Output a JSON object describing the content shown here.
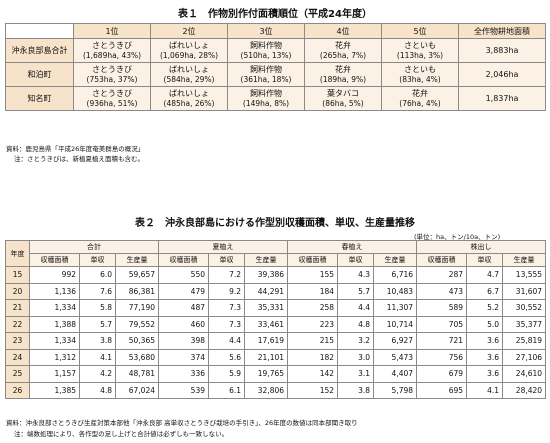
{
  "table1": {
    "title": "表１　作物別作付面積順位（平成24年度）",
    "col_headers": [
      "1位",
      "2位",
      "3位",
      "4位",
      "5位",
      "全作物耕地面積"
    ],
    "rows": [
      {
        "name": "沖永良部島合計",
        "cells": [
          {
            "crop": "さとうきび",
            "detail": "(1,689ha, 43%)"
          },
          {
            "crop": "ばれいしょ",
            "detail": "(1,069ha, 28%)"
          },
          {
            "crop": "飼料作物",
            "detail": "(510ha, 13%)"
          },
          {
            "crop": "花弁",
            "detail": "(265ha, 7%)"
          },
          {
            "crop": "さといも",
            "detail": "(113ha, 3%)"
          }
        ],
        "total": "3,883ha"
      },
      {
        "name": "和泊町",
        "cells": [
          {
            "crop": "さとうきび",
            "detail": "(753ha, 37%)"
          },
          {
            "crop": "ばれいしょ",
            "detail": "(584ha, 29%)"
          },
          {
            "crop": "飼料作物",
            "detail": "(361ha, 18%)"
          },
          {
            "crop": "花弁",
            "detail": "(189ha, 9%)"
          },
          {
            "crop": "さといも",
            "detail": "(83ha, 4%)"
          }
        ],
        "total": "2,046ha"
      },
      {
        "name": "知名町",
        "cells": [
          {
            "crop": "さとうきび",
            "detail": "(936ha, 51%)"
          },
          {
            "crop": "ばれいしょ",
            "detail": "(485ha, 26%)"
          },
          {
            "crop": "飼料作物",
            "detail": "(149ha, 8%)"
          },
          {
            "crop": "葉タバコ",
            "detail": "(86ha, 5%)"
          },
          {
            "crop": "花弁",
            "detail": "(76ha, 4%)"
          }
        ],
        "total": "1,837ha"
      }
    ],
    "notes": [
      "資料：鹿児島県「平成26年度奄美群島の概況」",
      "注：さとうきびは、新植夏植え面積も含む。"
    ]
  },
  "table2": {
    "title": "表２　沖永良部島における作型別収穫面積、単収、生産量推移",
    "unit": "(単位：ha、トン/10a、トン)",
    "year_header": "年度",
    "groups": [
      "合計",
      "夏植え",
      "春植え",
      "株出し"
    ],
    "subheaders": [
      "収穫面積",
      "単収",
      "生産量"
    ],
    "rows": [
      [
        "15",
        "992",
        "6.0",
        "59,657",
        "550",
        "7.2",
        "39,386",
        "155",
        "4.3",
        "6,716",
        "287",
        "4.7",
        "13,555"
      ],
      [
        "20",
        "1,136",
        "7.6",
        "86,381",
        "479",
        "9.2",
        "44,291",
        "184",
        "5.7",
        "10,483",
        "473",
        "6.7",
        "31,607"
      ],
      [
        "21",
        "1,334",
        "5.8",
        "77,190",
        "487",
        "7.3",
        "35,331",
        "258",
        "4.4",
        "11,307",
        "589",
        "5.2",
        "30,552"
      ],
      [
        "22",
        "1,388",
        "5.7",
        "79,552",
        "460",
        "7.3",
        "33,461",
        "223",
        "4.8",
        "10,714",
        "705",
        "5.0",
        "35,377"
      ],
      [
        "23",
        "1,334",
        "3.8",
        "50,365",
        "398",
        "4.4",
        "17,619",
        "215",
        "3.2",
        "6,927",
        "721",
        "3.6",
        "25,819"
      ],
      [
        "24",
        "1,312",
        "4.1",
        "53,680",
        "374",
        "5.6",
        "21,101",
        "182",
        "3.0",
        "5,473",
        "756",
        "3.6",
        "27,106"
      ],
      [
        "25",
        "1,157",
        "4.2",
        "48,781",
        "336",
        "5.9",
        "19,765",
        "142",
        "3.1",
        "4,407",
        "679",
        "3.6",
        "24,610"
      ],
      [
        "26",
        "1,385",
        "4.8",
        "67,024",
        "539",
        "6.1",
        "32,806",
        "152",
        "3.8",
        "5,798",
        "695",
        "4.1",
        "28,420"
      ]
    ],
    "notes": [
      "資料：沖永良部さとうきび生産対策本部他「沖永良部 高単収さとうきび栽培の手引き」、26年度の数値は同本部聞き取り",
      "注：端数処理により、各作型の足し上げと合計値は必ずしも一致しない。"
    ]
  }
}
